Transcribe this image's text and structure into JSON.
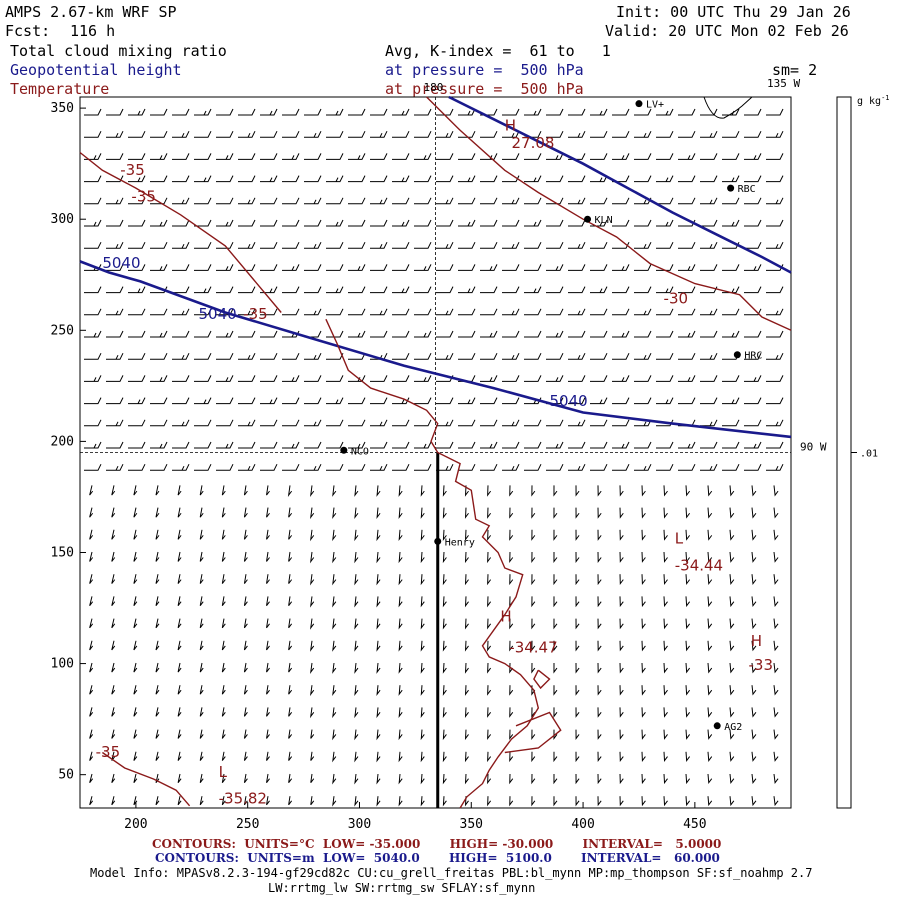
{
  "header": {
    "model": "AMPS 2.67-km WRF SP",
    "init": "Init: 00 UTC Thu 29 Jan 26",
    "fcst_label": "Fcst:",
    "fcst_value": "116 h",
    "valid": "Valid: 20 UTC Mon 02 Feb 26",
    "avg_k": "Avg, K-index =  61 to   1",
    "sm": "sm= 2"
  },
  "fields": [
    {
      "name": "Total cloud mixing ratio",
      "color": "#000000",
      "level": ""
    },
    {
      "name": "Geopotential height",
      "color": "#1a1a8c",
      "level": "at pressure =  500 hPa"
    },
    {
      "name": "Temperature",
      "color": "#8b1a1a",
      "level": "at pressure =  500 hPa"
    }
  ],
  "chart_data": {
    "type": "contour",
    "x_ticks": [
      "200",
      "250",
      "300",
      "350",
      "400",
      "450"
    ],
    "y_ticks": [
      "50",
      "100",
      "150",
      "200",
      "250",
      "300",
      "350"
    ],
    "xlim": [
      175,
      493
    ],
    "ylim": [
      35,
      355
    ],
    "meridians": [
      {
        "label": "180",
        "x": 334,
        "y_top": 355
      },
      {
        "label": "135 W",
        "x": 470,
        "y_top": 355
      },
      {
        "label": "90 W",
        "x": 493,
        "y": 195
      }
    ],
    "stations": [
      {
        "name": "LV+",
        "x": 425,
        "y": 352
      },
      {
        "name": "RBC",
        "x": 466,
        "y": 314
      },
      {
        "name": "KLN",
        "x": 402,
        "y": 300
      },
      {
        "name": "HRC",
        "x": 469,
        "y": 239
      },
      {
        "name": "NCO",
        "x": 293,
        "y": 196
      },
      {
        "name": "Henry",
        "x": 335,
        "y": 155
      },
      {
        "name": "AG2",
        "x": 460,
        "y": 72
      }
    ],
    "geopotential_contours": [
      {
        "label": "5040",
        "points": [
          [
            175,
            281
          ],
          [
            188,
            276
          ],
          [
            202,
            272
          ],
          [
            240,
            258
          ],
          [
            280,
            246
          ],
          [
            320,
            234
          ],
          [
            360,
            224
          ],
          [
            400,
            213
          ],
          [
            440,
            208
          ],
          [
            493,
            202
          ]
        ]
      },
      {
        "label": "",
        "points": [
          [
            340,
            355
          ],
          [
            360,
            345
          ],
          [
            380,
            335
          ],
          [
            400,
            325
          ],
          [
            420,
            314
          ],
          [
            440,
            303
          ],
          [
            460,
            293
          ],
          [
            480,
            283
          ],
          [
            493,
            276
          ]
        ]
      }
    ],
    "geopotential_labels": [
      {
        "text": "5040",
        "x": 185,
        "y": 278
      },
      {
        "text": "5040",
        "x": 228,
        "y": 255
      },
      {
        "text": "5040",
        "x": 385,
        "y": 216
      },
      {
        "text": "H",
        "x": 365,
        "y": 340
      },
      {
        "text": "27.08",
        "x": 368,
        "y": 332
      }
    ],
    "temperature_contours": [
      {
        "label": "-35",
        "points": [
          [
            175,
            330
          ],
          [
            185,
            322
          ],
          [
            200,
            314
          ],
          [
            220,
            302
          ],
          [
            240,
            288
          ],
          [
            255,
            270
          ],
          [
            265,
            258
          ]
        ]
      },
      {
        "label": "-30",
        "points": [
          [
            330,
            355
          ],
          [
            345,
            340
          ],
          [
            365,
            322
          ],
          [
            380,
            312
          ],
          [
            400,
            300
          ],
          [
            415,
            292
          ],
          [
            430,
            280
          ],
          [
            450,
            271
          ],
          [
            470,
            266
          ],
          [
            480,
            256
          ],
          [
            493,
            250
          ]
        ]
      },
      {
        "label": "-35",
        "points": [
          [
            285,
            255
          ],
          [
            290,
            244
          ],
          [
            295,
            232
          ],
          [
            305,
            224
          ],
          [
            320,
            219
          ],
          [
            330,
            214
          ],
          [
            335,
            208
          ],
          [
            332,
            200
          ],
          [
            335,
            195
          ],
          [
            345,
            190
          ],
          [
            343,
            182
          ],
          [
            350,
            178
          ],
          [
            352,
            165
          ],
          [
            358,
            162
          ],
          [
            355,
            157
          ],
          [
            362,
            150
          ],
          [
            365,
            143
          ],
          [
            373,
            140
          ],
          [
            370,
            130
          ],
          [
            365,
            122
          ],
          [
            360,
            115
          ],
          [
            355,
            108
          ],
          [
            358,
            103
          ],
          [
            365,
            100
          ],
          [
            372,
            95
          ],
          [
            378,
            88
          ],
          [
            380,
            80
          ],
          [
            375,
            72
          ],
          [
            368,
            66
          ],
          [
            362,
            58
          ],
          [
            358,
            52
          ],
          [
            355,
            46
          ],
          [
            348,
            40
          ],
          [
            345,
            35
          ]
        ]
      },
      {
        "label": "-35",
        "points": [
          [
            185,
            60
          ],
          [
            195,
            53
          ],
          [
            208,
            48
          ],
          [
            218,
            43
          ],
          [
            224,
            36
          ]
        ]
      },
      {
        "label": "",
        "points": [
          [
            380,
            97
          ],
          [
            385,
            93
          ],
          [
            381,
            89
          ],
          [
            378,
            93
          ],
          [
            380,
            97
          ]
        ]
      },
      {
        "label": "",
        "points": [
          [
            370,
            72
          ],
          [
            385,
            78
          ],
          [
            390,
            70
          ],
          [
            380,
            62
          ],
          [
            365,
            60
          ]
        ]
      }
    ],
    "temperature_labels": [
      {
        "text": "-35",
        "x": 193,
        "y": 320
      },
      {
        "text": "-35",
        "x": 198,
        "y": 308
      },
      {
        "text": "-35",
        "x": 248,
        "y": 255
      },
      {
        "text": "-30",
        "x": 436,
        "y": 262
      },
      {
        "text": "L",
        "x": 441,
        "y": 154
      },
      {
        "text": "-34.44",
        "x": 441,
        "y": 142
      },
      {
        "text": "H",
        "x": 363,
        "y": 119
      },
      {
        "text": "-34.47",
        "x": 367,
        "y": 105
      },
      {
        "text": "H",
        "x": 475,
        "y": 108
      },
      {
        "text": "-33",
        "x": 474,
        "y": 97
      },
      {
        "text": "-35",
        "x": 182,
        "y": 58
      },
      {
        "text": "L",
        "x": 237,
        "y": 49
      },
      {
        "text": "-35.82",
        "x": 237,
        "y": 37
      }
    ],
    "cross_section": {
      "x": 335,
      "y_from": 35,
      "y_to": 195
    },
    "color_scale": {
      "unit": "g kg-1",
      "value_label": ".01"
    }
  },
  "footer": {
    "t_contours": "CONTOURS:  UNITS=°C  LOW= -35.000       HIGH= -30.000       INTERVAL=   5.0000",
    "z_contours": "CONTOURS:  UNITS=m  LOW=  5040.0       HIGH=  5100.0       INTERVAL=   60.000",
    "model_info_1": "Model Info: MPASv8.2.3-194-gf29cd82c CU:cu_grell_freitas PBL:bl_mynn MP:mp_thompson SF:sf_noahmp 2.7",
    "model_info_2": "LW:rrtmg_lw SW:rrtmg_sw SFLAY:sf_mynn"
  }
}
